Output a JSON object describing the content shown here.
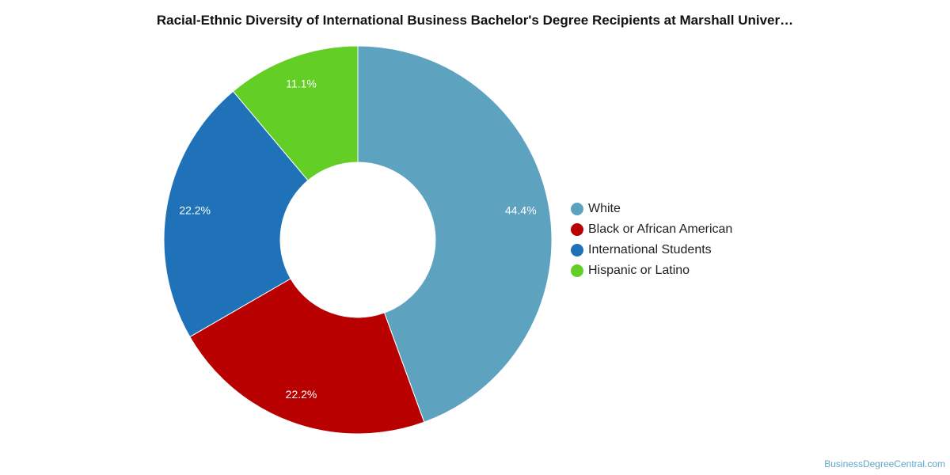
{
  "chart_data": {
    "type": "pie",
    "title": "Racial-Ethnic Diversity of International Business Bachelor's Degree Recipients at Marshall Univer…",
    "donut": true,
    "legend_position": "right",
    "slices": [
      {
        "label": "White",
        "value": 44.4,
        "value_label": "44.4%",
        "color": "#5da2bf"
      },
      {
        "label": "Black or African American",
        "value": 22.2,
        "value_label": "22.2%",
        "color": "#b80000"
      },
      {
        "label": "International Students",
        "value": 22.2,
        "value_label": "22.2%",
        "color": "#1f72b8"
      },
      {
        "label": "Hispanic or Latino",
        "value": 11.1,
        "value_label": "11.1%",
        "color": "#62ce26"
      }
    ]
  },
  "watermark": "BusinessDegreeCentral.com"
}
